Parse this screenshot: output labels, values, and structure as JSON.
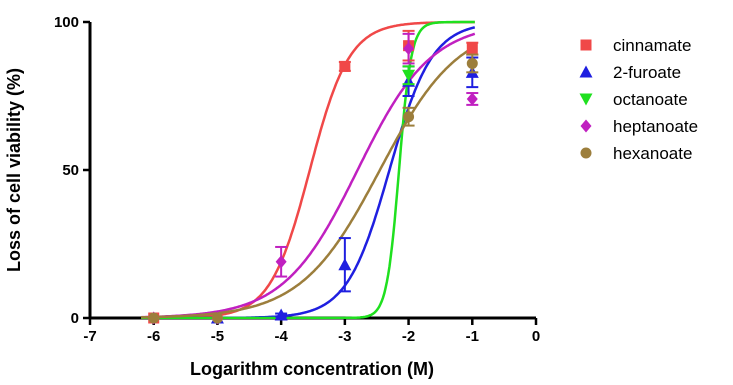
{
  "chart_data": {
    "type": "scatter",
    "title": "",
    "xlabel": "Logarithm concentration (M)",
    "ylabel": "Loss of cell viability (%)",
    "xlim": [
      -7,
      0
    ],
    "ylim": [
      0,
      100
    ],
    "xticks": [
      "-7",
      "-6",
      "-5",
      "-4",
      "-3",
      "-2",
      "-1",
      "0"
    ],
    "yticks": [
      "0",
      "50",
      "100"
    ],
    "grid": false,
    "legend_position": "right",
    "series": [
      {
        "name": "cinnamate",
        "color": "#f04848",
        "marker": "square",
        "points": [
          {
            "x": -6,
            "y": 0,
            "err": 0
          },
          {
            "x": -3,
            "y": 85,
            "err": 1.5
          },
          {
            "x": -2,
            "y": 92,
            "err": 5
          },
          {
            "x": -1,
            "y": 91,
            "err": 2
          }
        ],
        "fit": {
          "bottom": 0,
          "top": 100,
          "logEC50": -3.55,
          "hill": 1.4
        }
      },
      {
        "name": "2-furoate",
        "color": "#1f1fe0",
        "marker": "triangle-up",
        "points": [
          {
            "x": -5,
            "y": 0,
            "err": 0
          },
          {
            "x": -4,
            "y": 1,
            "err": 0.5
          },
          {
            "x": -3,
            "y": 18,
            "err": 9
          },
          {
            "x": -2,
            "y": 80,
            "err": 5
          },
          {
            "x": -1,
            "y": 83,
            "err": 5
          }
        ],
        "fit": {
          "bottom": 0,
          "top": 100,
          "logEC50": -2.3,
          "hill": 1.3
        }
      },
      {
        "name": "octanoate",
        "color": "#1fe01f",
        "marker": "triangle-down",
        "points": [
          {
            "x": -2,
            "y": 82,
            "err": 3
          }
        ],
        "fit": {
          "bottom": 0,
          "top": 100,
          "logEC50": -2.15,
          "hill": 4.5
        }
      },
      {
        "name": "heptanoate",
        "color": "#c020c0",
        "marker": "diamond",
        "points": [
          {
            "x": -6,
            "y": 0,
            "err": 0
          },
          {
            "x": -5,
            "y": 0,
            "err": 0
          },
          {
            "x": -4,
            "y": 19,
            "err": 5
          },
          {
            "x": -2,
            "y": 91,
            "err": 5
          },
          {
            "x": -1,
            "y": 74,
            "err": 2
          }
        ],
        "fit": {
          "bottom": 0,
          "top": 100,
          "logEC50": -2.8,
          "hill": 0.75
        }
      },
      {
        "name": "hexanoate",
        "color": "#9c7e3c",
        "marker": "circle",
        "points": [
          {
            "x": -6,
            "y": 0,
            "err": 0
          },
          {
            "x": -5,
            "y": 0,
            "err": 0
          },
          {
            "x": -2,
            "y": 68,
            "err": 3
          },
          {
            "x": -1,
            "y": 86,
            "err": 3
          }
        ],
        "fit": {
          "bottom": 0,
          "top": 100,
          "logEC50": -2.45,
          "hill": 0.7
        }
      }
    ]
  }
}
